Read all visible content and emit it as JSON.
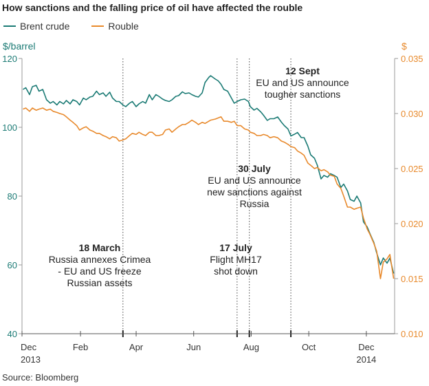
{
  "chart_data": {
    "type": "line",
    "title": "How sanctions and the falling price of oil have affected the rouble",
    "source": "Source: Bloomberg",
    "left_axis": {
      "unit": "$/barrel",
      "ylim": [
        40,
        120
      ],
      "ticks": [
        40,
        60,
        80,
        100,
        120
      ],
      "tick_labels": [
        "40",
        "60",
        "80",
        "100",
        "120"
      ],
      "color": "#1a7a74"
    },
    "right_axis": {
      "unit": "$",
      "ylim": [
        0.01,
        0.035
      ],
      "ticks": [
        0.01,
        0.015,
        0.02,
        0.025,
        0.03,
        0.035
      ],
      "tick_labels": [
        "0.010",
        "0.015",
        "0.020",
        "0.025",
        "0.030",
        "0.035"
      ],
      "color": "#e8892b"
    },
    "x_axis": {
      "range": [
        "2013-12-01",
        "2014-12-31"
      ],
      "ticks": [
        {
          "date": "2013-12-01",
          "label": "Dec",
          "sub": "2013"
        },
        {
          "date": "2014-02-01",
          "label": "Feb",
          "sub": ""
        },
        {
          "date": "2014-04-01",
          "label": "Apr",
          "sub": ""
        },
        {
          "date": "2014-06-01",
          "label": "Jun",
          "sub": ""
        },
        {
          "date": "2014-08-01",
          "label": "Aug",
          "sub": ""
        },
        {
          "date": "2014-10-01",
          "label": "Oct",
          "sub": ""
        },
        {
          "date": "2014-12-01",
          "label": "Dec",
          "sub": "2014"
        }
      ]
    },
    "series": [
      {
        "name": "Brent crude",
        "axis": "left",
        "color": "#1a7a74",
        "points": [
          [
            "2013-12-02",
            111.0
          ],
          [
            "2013-12-05",
            111.5
          ],
          [
            "2013-12-09",
            109.5
          ],
          [
            "2013-12-12",
            111.8
          ],
          [
            "2013-12-16",
            112.2
          ],
          [
            "2013-12-19",
            110.5
          ],
          [
            "2013-12-23",
            111.0
          ],
          [
            "2013-12-27",
            108.0
          ],
          [
            "2013-12-31",
            107.0
          ],
          [
            "2014-01-03",
            107.5
          ],
          [
            "2014-01-07",
            106.5
          ],
          [
            "2014-01-10",
            107.5
          ],
          [
            "2014-01-14",
            106.8
          ],
          [
            "2014-01-17",
            107.8
          ],
          [
            "2014-01-21",
            106.8
          ],
          [
            "2014-01-24",
            108.0
          ],
          [
            "2014-01-28",
            107.5
          ],
          [
            "2014-01-31",
            106.5
          ],
          [
            "2014-02-04",
            108.5
          ],
          [
            "2014-02-07",
            108.0
          ],
          [
            "2014-02-11",
            108.8
          ],
          [
            "2014-02-14",
            109.0
          ],
          [
            "2014-02-18",
            110.5
          ],
          [
            "2014-02-21",
            109.5
          ],
          [
            "2014-02-25",
            110.0
          ],
          [
            "2014-02-28",
            109.0
          ],
          [
            "2014-03-04",
            110.2
          ],
          [
            "2014-03-07",
            108.5
          ],
          [
            "2014-03-11",
            107.5
          ],
          [
            "2014-03-14",
            107.5
          ],
          [
            "2014-03-18",
            106.5
          ],
          [
            "2014-03-21",
            106.0
          ],
          [
            "2014-03-25",
            107.0
          ],
          [
            "2014-03-28",
            107.5
          ],
          [
            "2014-04-01",
            106.0
          ],
          [
            "2014-04-04",
            106.8
          ],
          [
            "2014-04-08",
            107.5
          ],
          [
            "2014-04-11",
            107.0
          ],
          [
            "2014-04-15",
            109.5
          ],
          [
            "2014-04-18",
            108.0
          ],
          [
            "2014-04-22",
            109.5
          ],
          [
            "2014-04-25",
            109.0
          ],
          [
            "2014-04-29",
            108.2
          ],
          [
            "2014-05-02",
            107.8
          ],
          [
            "2014-05-06",
            107.5
          ],
          [
            "2014-05-09",
            108.0
          ],
          [
            "2014-05-13",
            109.0
          ],
          [
            "2014-05-16",
            109.2
          ],
          [
            "2014-05-20",
            110.3
          ],
          [
            "2014-05-23",
            109.8
          ],
          [
            "2014-05-27",
            110.0
          ],
          [
            "2014-05-30",
            109.5
          ],
          [
            "2014-06-03",
            109.0
          ],
          [
            "2014-06-06",
            108.8
          ],
          [
            "2014-06-10",
            110.0
          ],
          [
            "2014-06-13",
            113.0
          ],
          [
            "2014-06-17",
            114.5
          ],
          [
            "2014-06-19",
            115.0
          ],
          [
            "2014-06-24",
            114.0
          ],
          [
            "2014-06-27",
            113.5
          ],
          [
            "2014-06-30",
            112.5
          ],
          [
            "2014-07-03",
            111.0
          ],
          [
            "2014-07-07",
            110.5
          ],
          [
            "2014-07-11",
            108.5
          ],
          [
            "2014-07-14",
            107.0
          ],
          [
            "2014-07-17",
            107.5
          ],
          [
            "2014-07-21",
            108.0
          ],
          [
            "2014-07-25",
            108.2
          ],
          [
            "2014-07-29",
            107.5
          ],
          [
            "2014-07-31",
            106.0
          ],
          [
            "2014-08-04",
            105.0
          ],
          [
            "2014-08-07",
            105.5
          ],
          [
            "2014-08-11",
            104.5
          ],
          [
            "2014-08-14",
            103.5
          ],
          [
            "2014-08-18",
            102.0
          ],
          [
            "2014-08-21",
            102.5
          ],
          [
            "2014-08-25",
            102.5
          ],
          [
            "2014-08-29",
            103.0
          ],
          [
            "2014-09-02",
            101.5
          ],
          [
            "2014-09-05",
            100.5
          ],
          [
            "2014-09-09",
            99.5
          ],
          [
            "2014-09-12",
            97.5
          ],
          [
            "2014-09-16",
            98.0
          ],
          [
            "2014-09-19",
            98.5
          ],
          [
            "2014-09-23",
            97.0
          ],
          [
            "2014-09-26",
            97.0
          ],
          [
            "2014-09-30",
            94.5
          ],
          [
            "2014-10-03",
            92.0
          ],
          [
            "2014-10-07",
            91.0
          ],
          [
            "2014-10-10",
            89.0
          ],
          [
            "2014-10-14",
            85.0
          ],
          [
            "2014-10-17",
            86.0
          ],
          [
            "2014-10-21",
            85.5
          ],
          [
            "2014-10-24",
            86.5
          ],
          [
            "2014-10-28",
            86.0
          ],
          [
            "2014-10-31",
            85.5
          ],
          [
            "2014-11-04",
            82.5
          ],
          [
            "2014-11-07",
            83.5
          ],
          [
            "2014-11-11",
            81.5
          ],
          [
            "2014-11-14",
            79.0
          ],
          [
            "2014-11-18",
            78.5
          ],
          [
            "2014-11-21",
            80.0
          ],
          [
            "2014-11-25",
            78.0
          ],
          [
            "2014-11-28",
            72.5
          ],
          [
            "2014-12-02",
            71.0
          ],
          [
            "2014-12-05",
            69.0
          ],
          [
            "2014-12-09",
            66.5
          ],
          [
            "2014-12-12",
            63.5
          ],
          [
            "2014-12-16",
            60.0
          ],
          [
            "2014-12-19",
            62.0
          ],
          [
            "2014-12-23",
            60.5
          ],
          [
            "2014-12-26",
            62.0
          ],
          [
            "2014-12-30",
            57.5
          ]
        ]
      },
      {
        "name": "Rouble",
        "axis": "right",
        "color": "#e8892b",
        "points": [
          [
            "2013-12-02",
            0.0304
          ],
          [
            "2013-12-05",
            0.0305
          ],
          [
            "2013-12-09",
            0.0302
          ],
          [
            "2013-12-12",
            0.0305
          ],
          [
            "2013-12-16",
            0.0303
          ],
          [
            "2013-12-19",
            0.0304
          ],
          [
            "2013-12-23",
            0.0305
          ],
          [
            "2013-12-27",
            0.0303
          ],
          [
            "2013-12-31",
            0.0304
          ],
          [
            "2014-01-03",
            0.0302
          ],
          [
            "2014-01-07",
            0.0301
          ],
          [
            "2014-01-10",
            0.03
          ],
          [
            "2014-01-14",
            0.0299
          ],
          [
            "2014-01-17",
            0.0297
          ],
          [
            "2014-01-21",
            0.0294
          ],
          [
            "2014-01-24",
            0.0292
          ],
          [
            "2014-01-28",
            0.0289
          ],
          [
            "2014-01-31",
            0.0285
          ],
          [
            "2014-02-04",
            0.0287
          ],
          [
            "2014-02-07",
            0.0288
          ],
          [
            "2014-02-11",
            0.0285
          ],
          [
            "2014-02-14",
            0.0284
          ],
          [
            "2014-02-18",
            0.0282
          ],
          [
            "2014-02-21",
            0.0282
          ],
          [
            "2014-02-25",
            0.028
          ],
          [
            "2014-02-28",
            0.0279
          ],
          [
            "2014-03-04",
            0.0277
          ],
          [
            "2014-03-07",
            0.0279
          ],
          [
            "2014-03-11",
            0.0278
          ],
          [
            "2014-03-14",
            0.0275
          ],
          [
            "2014-03-18",
            0.0276
          ],
          [
            "2014-03-21",
            0.0277
          ],
          [
            "2014-03-25",
            0.028
          ],
          [
            "2014-03-28",
            0.0282
          ],
          [
            "2014-04-01",
            0.0281
          ],
          [
            "2014-04-04",
            0.0283
          ],
          [
            "2014-04-08",
            0.0281
          ],
          [
            "2014-04-11",
            0.028
          ],
          [
            "2014-04-15",
            0.0283
          ],
          [
            "2014-04-18",
            0.0283
          ],
          [
            "2014-04-22",
            0.028
          ],
          [
            "2014-04-25",
            0.028
          ],
          [
            "2014-04-29",
            0.0281
          ],
          [
            "2014-05-02",
            0.0285
          ],
          [
            "2014-05-06",
            0.0286
          ],
          [
            "2014-05-09",
            0.0283
          ],
          [
            "2014-05-13",
            0.0286
          ],
          [
            "2014-05-16",
            0.0288
          ],
          [
            "2014-05-20",
            0.029
          ],
          [
            "2014-05-23",
            0.029
          ],
          [
            "2014-05-27",
            0.0292
          ],
          [
            "2014-05-30",
            0.0294
          ],
          [
            "2014-06-03",
            0.0292
          ],
          [
            "2014-06-06",
            0.029
          ],
          [
            "2014-06-10",
            0.0292
          ],
          [
            "2014-06-13",
            0.0291
          ],
          [
            "2014-06-17",
            0.0293
          ],
          [
            "2014-06-19",
            0.0294
          ],
          [
            "2014-06-24",
            0.0295
          ],
          [
            "2014-06-27",
            0.0296
          ],
          [
            "2014-06-30",
            0.0297
          ],
          [
            "2014-07-03",
            0.0293
          ],
          [
            "2014-07-07",
            0.0293
          ],
          [
            "2014-07-11",
            0.0292
          ],
          [
            "2014-07-14",
            0.0293
          ],
          [
            "2014-07-17",
            0.0289
          ],
          [
            "2014-07-21",
            0.0289
          ],
          [
            "2014-07-25",
            0.0286
          ],
          [
            "2014-07-29",
            0.0285
          ],
          [
            "2014-07-31",
            0.0283
          ],
          [
            "2014-08-04",
            0.0282
          ],
          [
            "2014-08-07",
            0.028
          ],
          [
            "2014-08-11",
            0.028
          ],
          [
            "2014-08-14",
            0.0281
          ],
          [
            "2014-08-18",
            0.028
          ],
          [
            "2014-08-21",
            0.0278
          ],
          [
            "2014-08-25",
            0.0279
          ],
          [
            "2014-08-29",
            0.0278
          ],
          [
            "2014-09-02",
            0.0275
          ],
          [
            "2014-09-05",
            0.0274
          ],
          [
            "2014-09-09",
            0.0272
          ],
          [
            "2014-09-12",
            0.027
          ],
          [
            "2014-09-16",
            0.0269
          ],
          [
            "2014-09-19",
            0.0266
          ],
          [
            "2014-09-23",
            0.0264
          ],
          [
            "2014-09-26",
            0.0262
          ],
          [
            "2014-09-30",
            0.0255
          ],
          [
            "2014-10-03",
            0.0253
          ],
          [
            "2014-10-07",
            0.025
          ],
          [
            "2014-10-10",
            0.0251
          ],
          [
            "2014-10-14",
            0.0248
          ],
          [
            "2014-10-17",
            0.0249
          ],
          [
            "2014-10-21",
            0.0247
          ],
          [
            "2014-10-24",
            0.0244
          ],
          [
            "2014-10-28",
            0.0243
          ],
          [
            "2014-10-31",
            0.0236
          ],
          [
            "2014-11-04",
            0.0232
          ],
          [
            "2014-11-07",
            0.0225
          ],
          [
            "2014-11-11",
            0.0215
          ],
          [
            "2014-11-14",
            0.0215
          ],
          [
            "2014-11-18",
            0.0213
          ],
          [
            "2014-11-21",
            0.0214
          ],
          [
            "2014-11-25",
            0.0215
          ],
          [
            "2014-11-28",
            0.0205
          ],
          [
            "2014-12-02",
            0.0195
          ],
          [
            "2014-12-05",
            0.019
          ],
          [
            "2014-12-09",
            0.0182
          ],
          [
            "2014-12-12",
            0.0175
          ],
          [
            "2014-12-16",
            0.015
          ],
          [
            "2014-12-19",
            0.0165
          ],
          [
            "2014-12-23",
            0.0168
          ],
          [
            "2014-12-26",
            0.0172
          ],
          [
            "2014-12-30",
            0.015
          ]
        ]
      }
    ],
    "annotations": [
      {
        "date": "2014-03-18",
        "title": "18 March",
        "lines": [
          "Russia annexes Crimea",
          "- EU and US freeze",
          "Russian assets"
        ]
      },
      {
        "date": "2014-07-17",
        "title": "17 July",
        "lines": [
          "Flight MH17",
          "shot down"
        ]
      },
      {
        "date": "2014-07-30",
        "title": "30 July",
        "lines": [
          "EU and US announce",
          "new sanctions against",
          "Russia"
        ]
      },
      {
        "date": "2014-09-12",
        "title": "12 Sept",
        "lines": [
          "EU and US announce",
          "tougher sanctions"
        ]
      }
    ],
    "legend": {
      "placement": "top-left"
    },
    "grid": false
  }
}
